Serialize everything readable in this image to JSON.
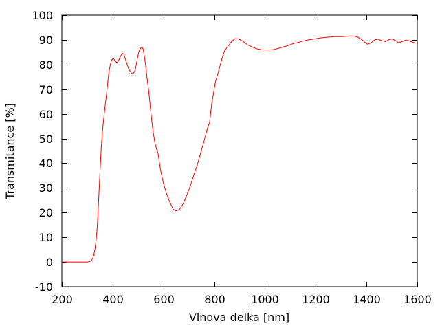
{
  "figure": {
    "background": "#ffffff",
    "frame_color": "#000000",
    "text_color": "#000000"
  },
  "chart_data": {
    "type": "line",
    "title": "",
    "xlabel": "Vlnova delka [nm]",
    "ylabel": "Transmitance [%]",
    "xlim": [
      200,
      1600
    ],
    "ylim": [
      -10,
      100
    ],
    "xticks": [
      200,
      400,
      600,
      800,
      1000,
      1200,
      1400,
      1600
    ],
    "yticks": [
      -10,
      0,
      10,
      20,
      30,
      40,
      50,
      60,
      70,
      80,
      90,
      100
    ],
    "grid": false,
    "legend": "none",
    "tick_style": "inward-mirrored",
    "series": [
      {
        "name": "transmittance-spectrum",
        "color": "#ff0000",
        "points": [
          [
            200,
            0
          ],
          [
            240,
            0
          ],
          [
            280,
            0
          ],
          [
            300,
            0
          ],
          [
            310,
            0.2
          ],
          [
            316,
            0.5
          ],
          [
            320,
            1.2
          ],
          [
            325,
            2.5
          ],
          [
            330,
            5
          ],
          [
            335,
            9
          ],
          [
            340,
            15
          ],
          [
            345,
            25
          ],
          [
            350,
            36
          ],
          [
            355,
            46
          ],
          [
            360,
            53
          ],
          [
            365,
            58
          ],
          [
            370,
            63
          ],
          [
            375,
            67
          ],
          [
            380,
            72
          ],
          [
            385,
            76.5
          ],
          [
            390,
            79.5
          ],
          [
            395,
            81.5
          ],
          [
            400,
            82.4
          ],
          [
            405,
            82.2
          ],
          [
            410,
            81.3
          ],
          [
            417,
            80.8
          ],
          [
            422,
            81.3
          ],
          [
            428,
            82.6
          ],
          [
            434,
            83.9
          ],
          [
            439,
            84.5
          ],
          [
            444,
            84.2
          ],
          [
            448,
            82.9
          ],
          [
            453,
            81.4
          ],
          [
            458,
            79.7
          ],
          [
            464,
            78.1
          ],
          [
            470,
            77
          ],
          [
            475,
            76.5
          ],
          [
            479,
            76.3
          ],
          [
            485,
            76.8
          ],
          [
            490,
            78.2
          ],
          [
            495,
            81
          ],
          [
            500,
            83.8
          ],
          [
            505,
            85.6
          ],
          [
            510,
            86.6
          ],
          [
            515,
            87.1
          ],
          [
            520,
            86.3
          ],
          [
            525,
            83.5
          ],
          [
            530,
            79.5
          ],
          [
            535,
            75
          ],
          [
            540,
            71
          ],
          [
            545,
            66.5
          ],
          [
            550,
            61
          ],
          [
            555,
            56.5
          ],
          [
            560,
            52.5
          ],
          [
            567,
            48
          ],
          [
            573,
            45.8
          ],
          [
            579,
            43.9
          ],
          [
            587,
            38.3
          ],
          [
            598,
            32.7
          ],
          [
            611,
            28
          ],
          [
            625,
            24.3
          ],
          [
            638,
            21.5
          ],
          [
            647,
            20.7
          ],
          [
            658,
            21
          ],
          [
            665,
            21.5
          ],
          [
            679,
            23.8
          ],
          [
            692,
            27.1
          ],
          [
            706,
            30.8
          ],
          [
            719,
            35
          ],
          [
            733,
            39.1
          ],
          [
            746,
            43.9
          ],
          [
            760,
            48.9
          ],
          [
            773,
            54
          ],
          [
            782,
            56.5
          ],
          [
            790,
            64
          ],
          [
            796,
            67.5
          ],
          [
            804,
            72.5
          ],
          [
            815,
            76.5
          ],
          [
            823,
            79.5
          ],
          [
            831,
            82.5
          ],
          [
            842,
            85.8
          ],
          [
            855,
            87.5
          ],
          [
            869,
            89.3
          ],
          [
            882,
            90.5
          ],
          [
            896,
            90.4
          ],
          [
            912,
            89.5
          ],
          [
            931,
            88
          ],
          [
            950,
            87.1
          ],
          [
            966,
            86.4
          ],
          [
            985,
            86
          ],
          [
            1012,
            85.9
          ],
          [
            1031,
            86
          ],
          [
            1047,
            86.4
          ],
          [
            1066,
            86.9
          ],
          [
            1085,
            87.5
          ],
          [
            1112,
            88.5
          ],
          [
            1139,
            89.2
          ],
          [
            1166,
            89.9
          ],
          [
            1193,
            90.3
          ],
          [
            1220,
            90.8
          ],
          [
            1247,
            91.1
          ],
          [
            1274,
            91.3
          ],
          [
            1301,
            91.3
          ],
          [
            1320,
            91.4
          ],
          [
            1337,
            91.6
          ],
          [
            1350,
            91.5
          ],
          [
            1364,
            91.2
          ],
          [
            1383,
            90
          ],
          [
            1399,
            88.5
          ],
          [
            1405,
            88.2
          ],
          [
            1418,
            88.8
          ],
          [
            1432,
            90
          ],
          [
            1445,
            90.3
          ],
          [
            1459,
            89.7
          ],
          [
            1475,
            89.3
          ],
          [
            1491,
            90.2
          ],
          [
            1500,
            90.3
          ],
          [
            1513,
            89.8
          ],
          [
            1525,
            88.9
          ],
          [
            1540,
            89.3
          ],
          [
            1554,
            89.9
          ],
          [
            1565,
            89.7
          ],
          [
            1573,
            89.4
          ],
          [
            1586,
            88.9
          ],
          [
            1597,
            88.7
          ]
        ]
      }
    ]
  }
}
